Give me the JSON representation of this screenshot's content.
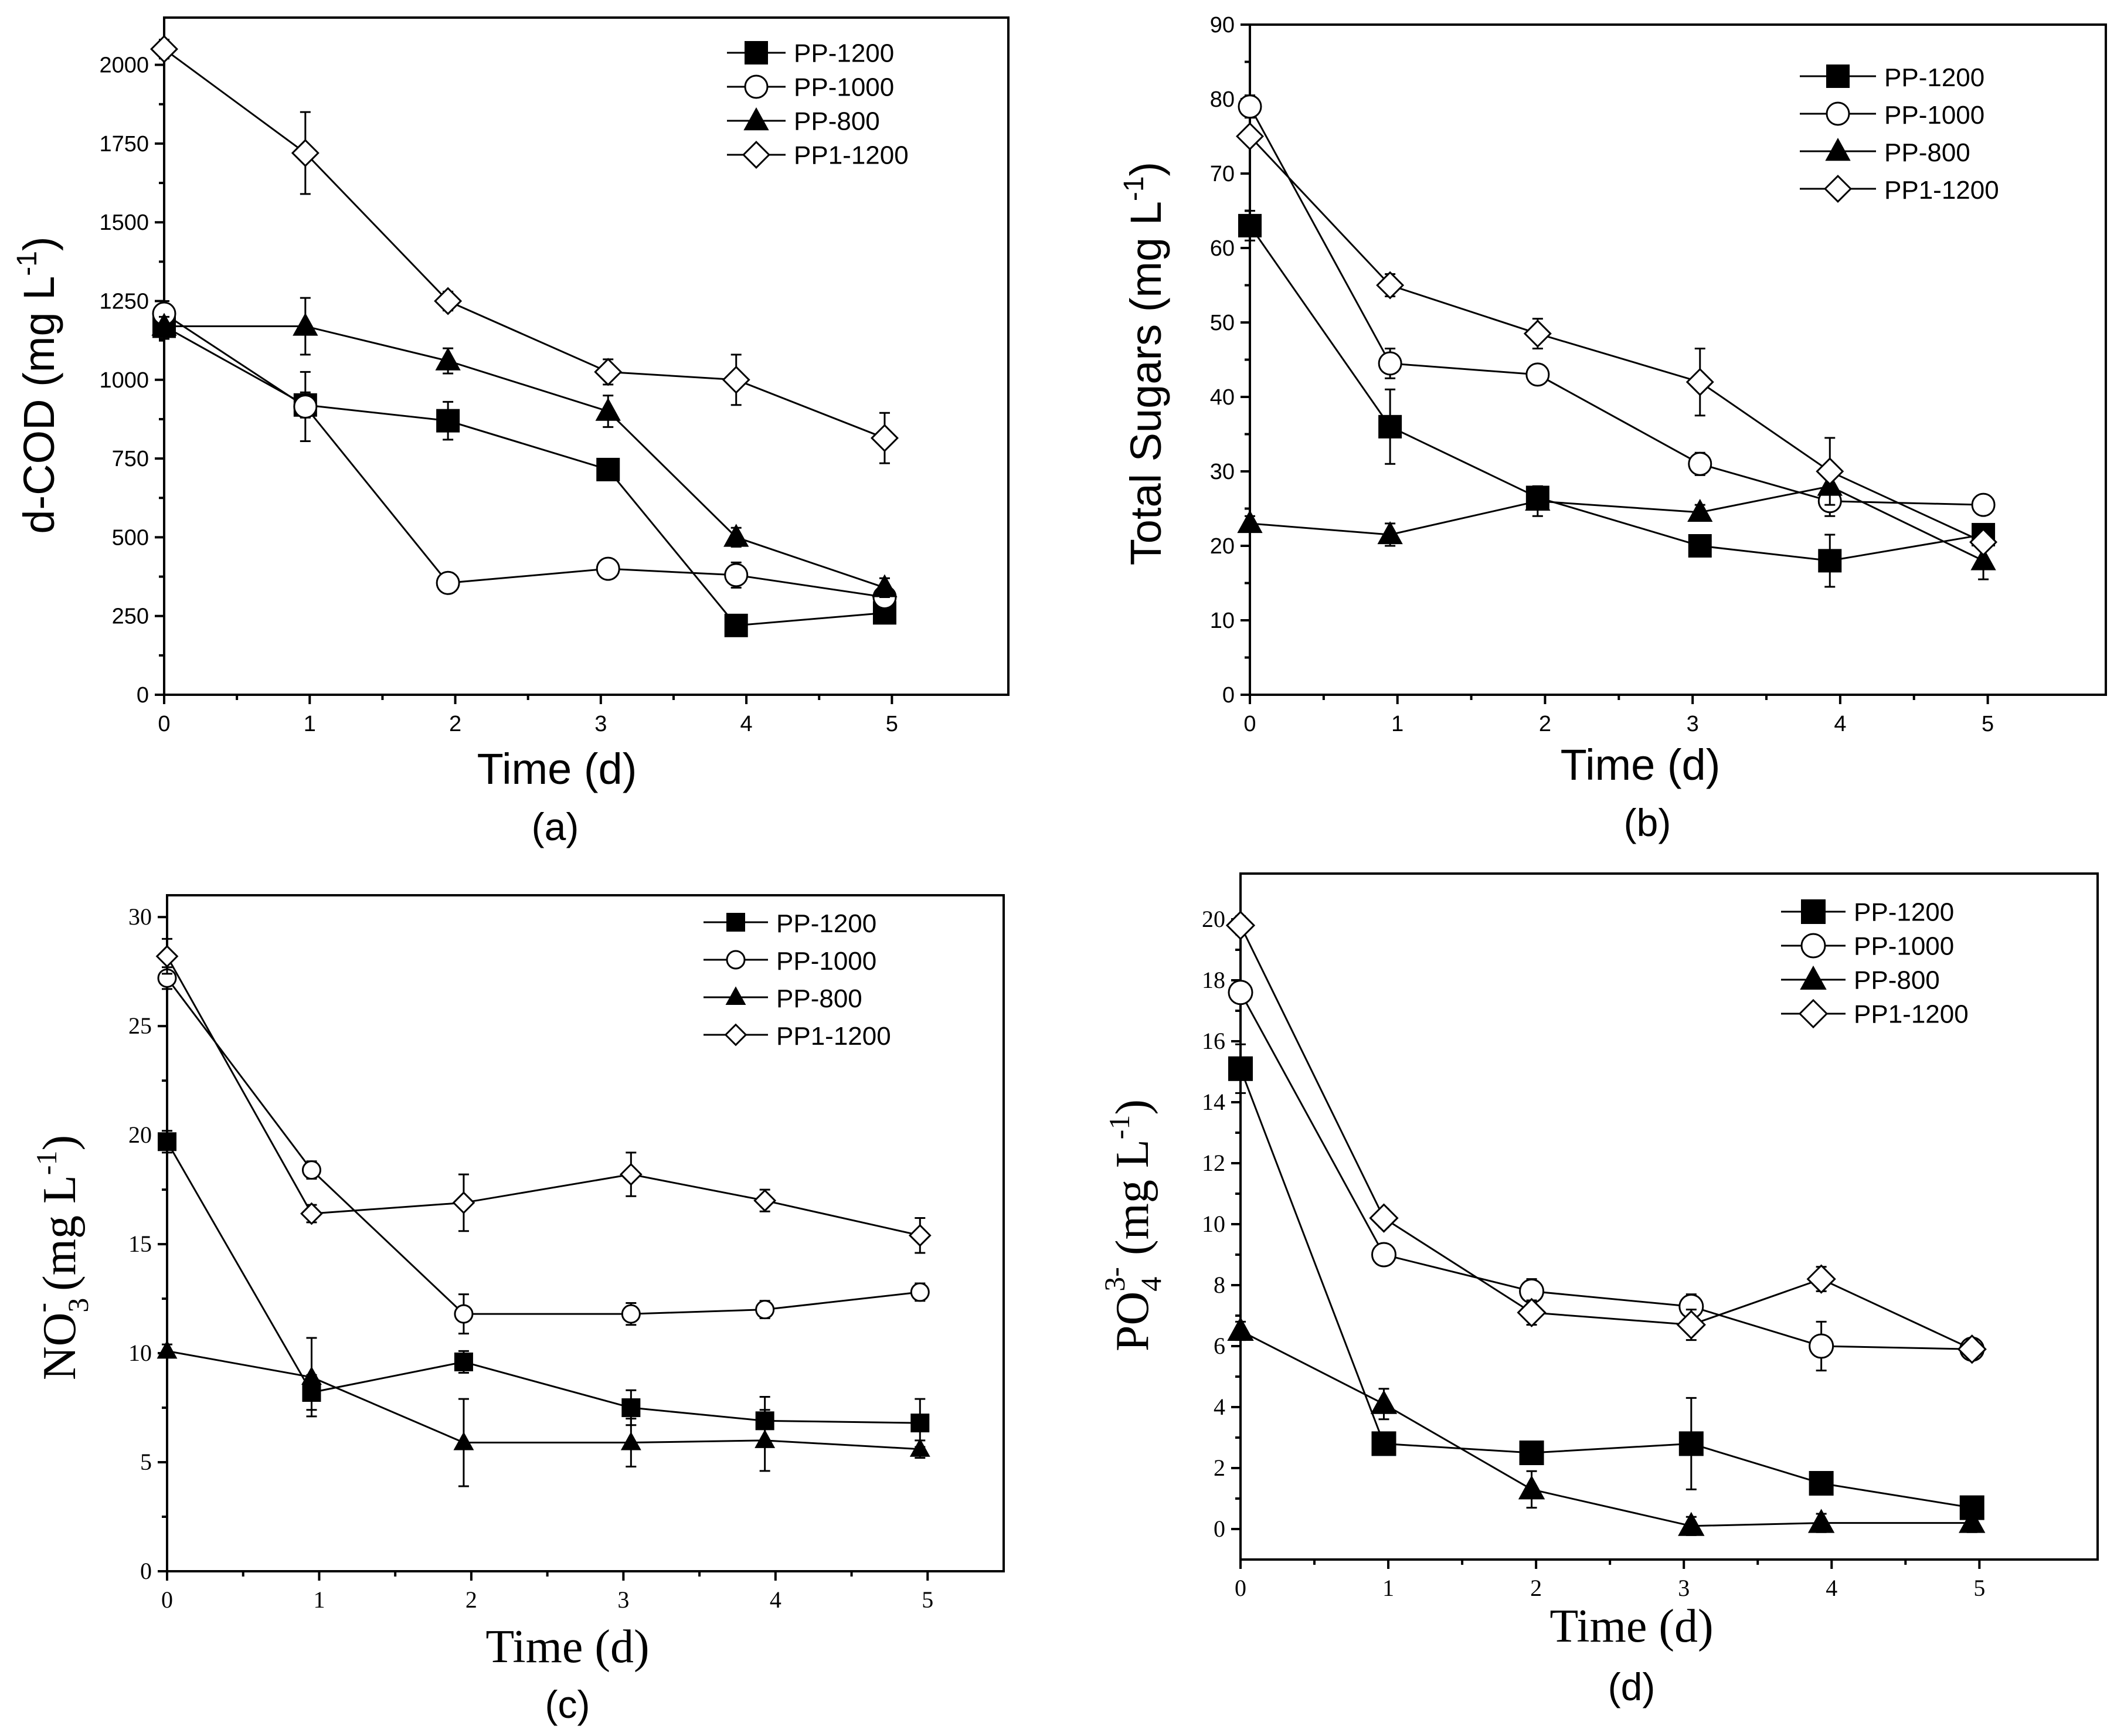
{
  "chart_data": [
    {
      "type": "line",
      "panel_label": "(a)",
      "xlabel": "Time (d)",
      "ylabel": "d-COD (mg L-1)",
      "ylabel_main": "d-COD (mg L",
      "ylabel_sup": "-1",
      "ylabel_end": ")",
      "xlim": [
        0,
        5.8
      ],
      "ylim": [
        0,
        2150
      ],
      "xticks": [
        0,
        1,
        2,
        3,
        4,
        5
      ],
      "yticks": [
        0,
        250,
        500,
        750,
        1000,
        1250,
        1500,
        1750,
        2000
      ],
      "legend": [
        "PP-1200",
        "PP-1000",
        "PP-800",
        "PP1-1200"
      ],
      "series": [
        {
          "name": "PP-1200",
          "marker": "square",
          "x": [
            0,
            0.97,
            1.95,
            3.05,
            3.93,
            4.95
          ],
          "y": [
            1170,
            920,
            870,
            715,
            220,
            260
          ],
          "err": [
            40,
            40,
            60,
            30,
            30,
            30
          ]
        },
        {
          "name": "PP-1000",
          "marker": "circle",
          "x": [
            0,
            0.97,
            1.95,
            3.05,
            3.93,
            4.95
          ],
          "y": [
            1210,
            915,
            355,
            400,
            380,
            310
          ],
          "err": [
            40,
            110,
            30,
            30,
            40,
            30
          ]
        },
        {
          "name": "PP-800",
          "marker": "triangle",
          "x": [
            0,
            0.97,
            1.95,
            3.05,
            3.93,
            4.95
          ],
          "y": [
            1170,
            1170,
            1060,
            900,
            500,
            340
          ],
          "err": [
            30,
            90,
            40,
            50,
            30,
            30
          ]
        },
        {
          "name": "PP1-1200",
          "marker": "diamond",
          "x": [
            0,
            0.97,
            1.95,
            3.05,
            3.93,
            4.95
          ],
          "y": [
            2050,
            1720,
            1250,
            1025,
            1000,
            815
          ],
          "err": [
            30,
            130,
            30,
            40,
            80,
            80
          ]
        }
      ]
    },
    {
      "type": "line",
      "panel_label": "(b)",
      "xlabel": "Time (d)",
      "ylabel": "Total Sugars (mg L-1)",
      "ylabel_main": "Total Sugars (mg L",
      "ylabel_sup": "-1",
      "ylabel_end": ")",
      "xlim": [
        0,
        5.8
      ],
      "ylim": [
        0,
        90
      ],
      "xticks": [
        0,
        1,
        2,
        3,
        4,
        5
      ],
      "yticks": [
        0,
        10,
        20,
        30,
        40,
        50,
        60,
        70,
        80,
        90
      ],
      "legend": [
        "PP-1200",
        "PP-1000",
        "PP-800",
        "PP1-1200"
      ],
      "series": [
        {
          "name": "PP-1200",
          "marker": "square",
          "x": [
            0,
            0.95,
            1.95,
            3.05,
            3.93,
            4.97
          ],
          "y": [
            63,
            36,
            26.5,
            20,
            18,
            21.5
          ],
          "err": [
            2,
            5,
            1.5,
            1,
            3.5,
            1
          ]
        },
        {
          "name": "PP-1000",
          "marker": "circle",
          "x": [
            0,
            0.95,
            1.95,
            3.05,
            3.93,
            4.97
          ],
          "y": [
            79,
            44.5,
            43,
            31,
            26,
            25.5
          ],
          "err": [
            1.5,
            2,
            1,
            1.5,
            2,
            1
          ]
        },
        {
          "name": "PP-800",
          "marker": "triangle",
          "x": [
            0,
            0.95,
            1.95,
            3.05,
            3.93,
            4.97
          ],
          "y": [
            23,
            21.5,
            26,
            24.5,
            28,
            18
          ],
          "err": [
            1,
            1.5,
            2,
            1,
            1,
            2.5
          ]
        },
        {
          "name": "PP1-1200",
          "marker": "diamond",
          "x": [
            0,
            0.95,
            1.95,
            3.05,
            3.93,
            4.97
          ],
          "y": [
            75,
            55,
            48.5,
            42,
            30,
            20.5
          ],
          "err": [
            1,
            1.5,
            2,
            4.5,
            4.5,
            1
          ]
        }
      ]
    },
    {
      "type": "line",
      "panel_label": "(c)",
      "xlabel": "Time (d)",
      "ylabel": "NO3- (mg L-1)",
      "ylabel_main": "NO",
      "ylabel_sub": "3",
      "ylabel_sup1": "-",
      "ylabel_mid": " (mg L",
      "ylabel_sup": "-1",
      "ylabel_end": ")",
      "xlim": [
        0,
        5.5
      ],
      "ylim": [
        0,
        31
      ],
      "xticks": [
        0,
        1,
        2,
        3,
        4,
        5
      ],
      "yticks": [
        0,
        5,
        10,
        15,
        20,
        25,
        30
      ],
      "legend": [
        "PP-1200",
        "PP-1000",
        "PP-800",
        "PP1-1200"
      ],
      "series": [
        {
          "name": "PP-1200",
          "marker": "square",
          "x": [
            0,
            0.95,
            1.95,
            3.05,
            3.93,
            4.95
          ],
          "y": [
            19.7,
            8.2,
            9.6,
            7.5,
            6.9,
            6.8
          ],
          "err": [
            0.5,
            0.8,
            0.5,
            0.8,
            1.1,
            1.1
          ]
        },
        {
          "name": "PP-1000",
          "marker": "circle",
          "x": [
            0,
            0.95,
            1.95,
            3.05,
            3.93,
            4.95
          ],
          "y": [
            27.2,
            18.4,
            11.8,
            11.8,
            12,
            12.8
          ],
          "err": [
            0.5,
            0.4,
            0.9,
            0.5,
            0.4,
            0.4
          ]
        },
        {
          "name": "PP-800",
          "marker": "triangle",
          "x": [
            0,
            0.95,
            1.95,
            3.05,
            3.93,
            4.95
          ],
          "y": [
            10.1,
            8.9,
            5.9,
            5.9,
            6,
            5.6
          ],
          "err": [
            0.3,
            1.8,
            2,
            1.1,
            1.4,
            0.4
          ]
        },
        {
          "name": "PP1-1200",
          "marker": "diamond",
          "x": [
            0,
            0.95,
            1.95,
            3.05,
            3.93,
            4.95
          ],
          "y": [
            28.2,
            16.4,
            16.9,
            18.2,
            17,
            15.4
          ],
          "err": [
            0.8,
            0.4,
            1.3,
            1,
            0.5,
            0.8
          ]
        }
      ]
    },
    {
      "type": "line",
      "panel_label": "(d)",
      "xlabel": "Time (d)",
      "ylabel": "PO43- (mg L-1)",
      "ylabel_main": "PO",
      "ylabel_sub": "4",
      "ylabel_sup1": "3-",
      "ylabel_mid": " (mg L",
      "ylabel_sup": "-1",
      "ylabel_end": ")",
      "xlim": [
        0,
        5.8
      ],
      "ylim": [
        -1,
        21.5
      ],
      "xticks": [
        0,
        1,
        2,
        3,
        4,
        5
      ],
      "yticks": [
        0,
        2,
        4,
        6,
        8,
        10,
        12,
        14,
        16,
        18,
        20
      ],
      "legend": [
        "PP-1200",
        "PP-1000",
        "PP-800",
        "PP1-1200"
      ],
      "series": [
        {
          "name": "PP-1200",
          "marker": "square",
          "x": [
            0,
            0.97,
            1.97,
            3.05,
            3.93,
            4.95
          ],
          "y": [
            15.1,
            2.8,
            2.5,
            2.8,
            1.5,
            0.7
          ],
          "err": [
            0.8,
            0.3,
            0.3,
            1.5,
            0.3,
            0.3
          ]
        },
        {
          "name": "PP-1000",
          "marker": "circle",
          "x": [
            0,
            0.97,
            1.97,
            3.05,
            3.93,
            4.95
          ],
          "y": [
            17.6,
            9,
            7.8,
            7.3,
            6,
            5.9
          ],
          "err": [
            0.3,
            0.3,
            0.4,
            0.4,
            0.8,
            0.3
          ]
        },
        {
          "name": "PP-800",
          "marker": "triangle",
          "x": [
            0,
            0.97,
            1.97,
            3.05,
            3.93,
            4.95
          ],
          "y": [
            6.5,
            4.1,
            1.3,
            0.1,
            0.2,
            0.2
          ],
          "err": [
            0.3,
            0.5,
            0.6,
            0.3,
            0.3,
            0.3
          ]
        },
        {
          "name": "PP1-1200",
          "marker": "diamond",
          "x": [
            0,
            0.97,
            1.97,
            3.05,
            3.93,
            4.95
          ],
          "y": [
            19.8,
            10.2,
            7.1,
            6.7,
            8.2,
            5.9
          ],
          "err": [
            0.3,
            0.3,
            0.4,
            0.5,
            0.4,
            0.3
          ]
        }
      ]
    }
  ]
}
